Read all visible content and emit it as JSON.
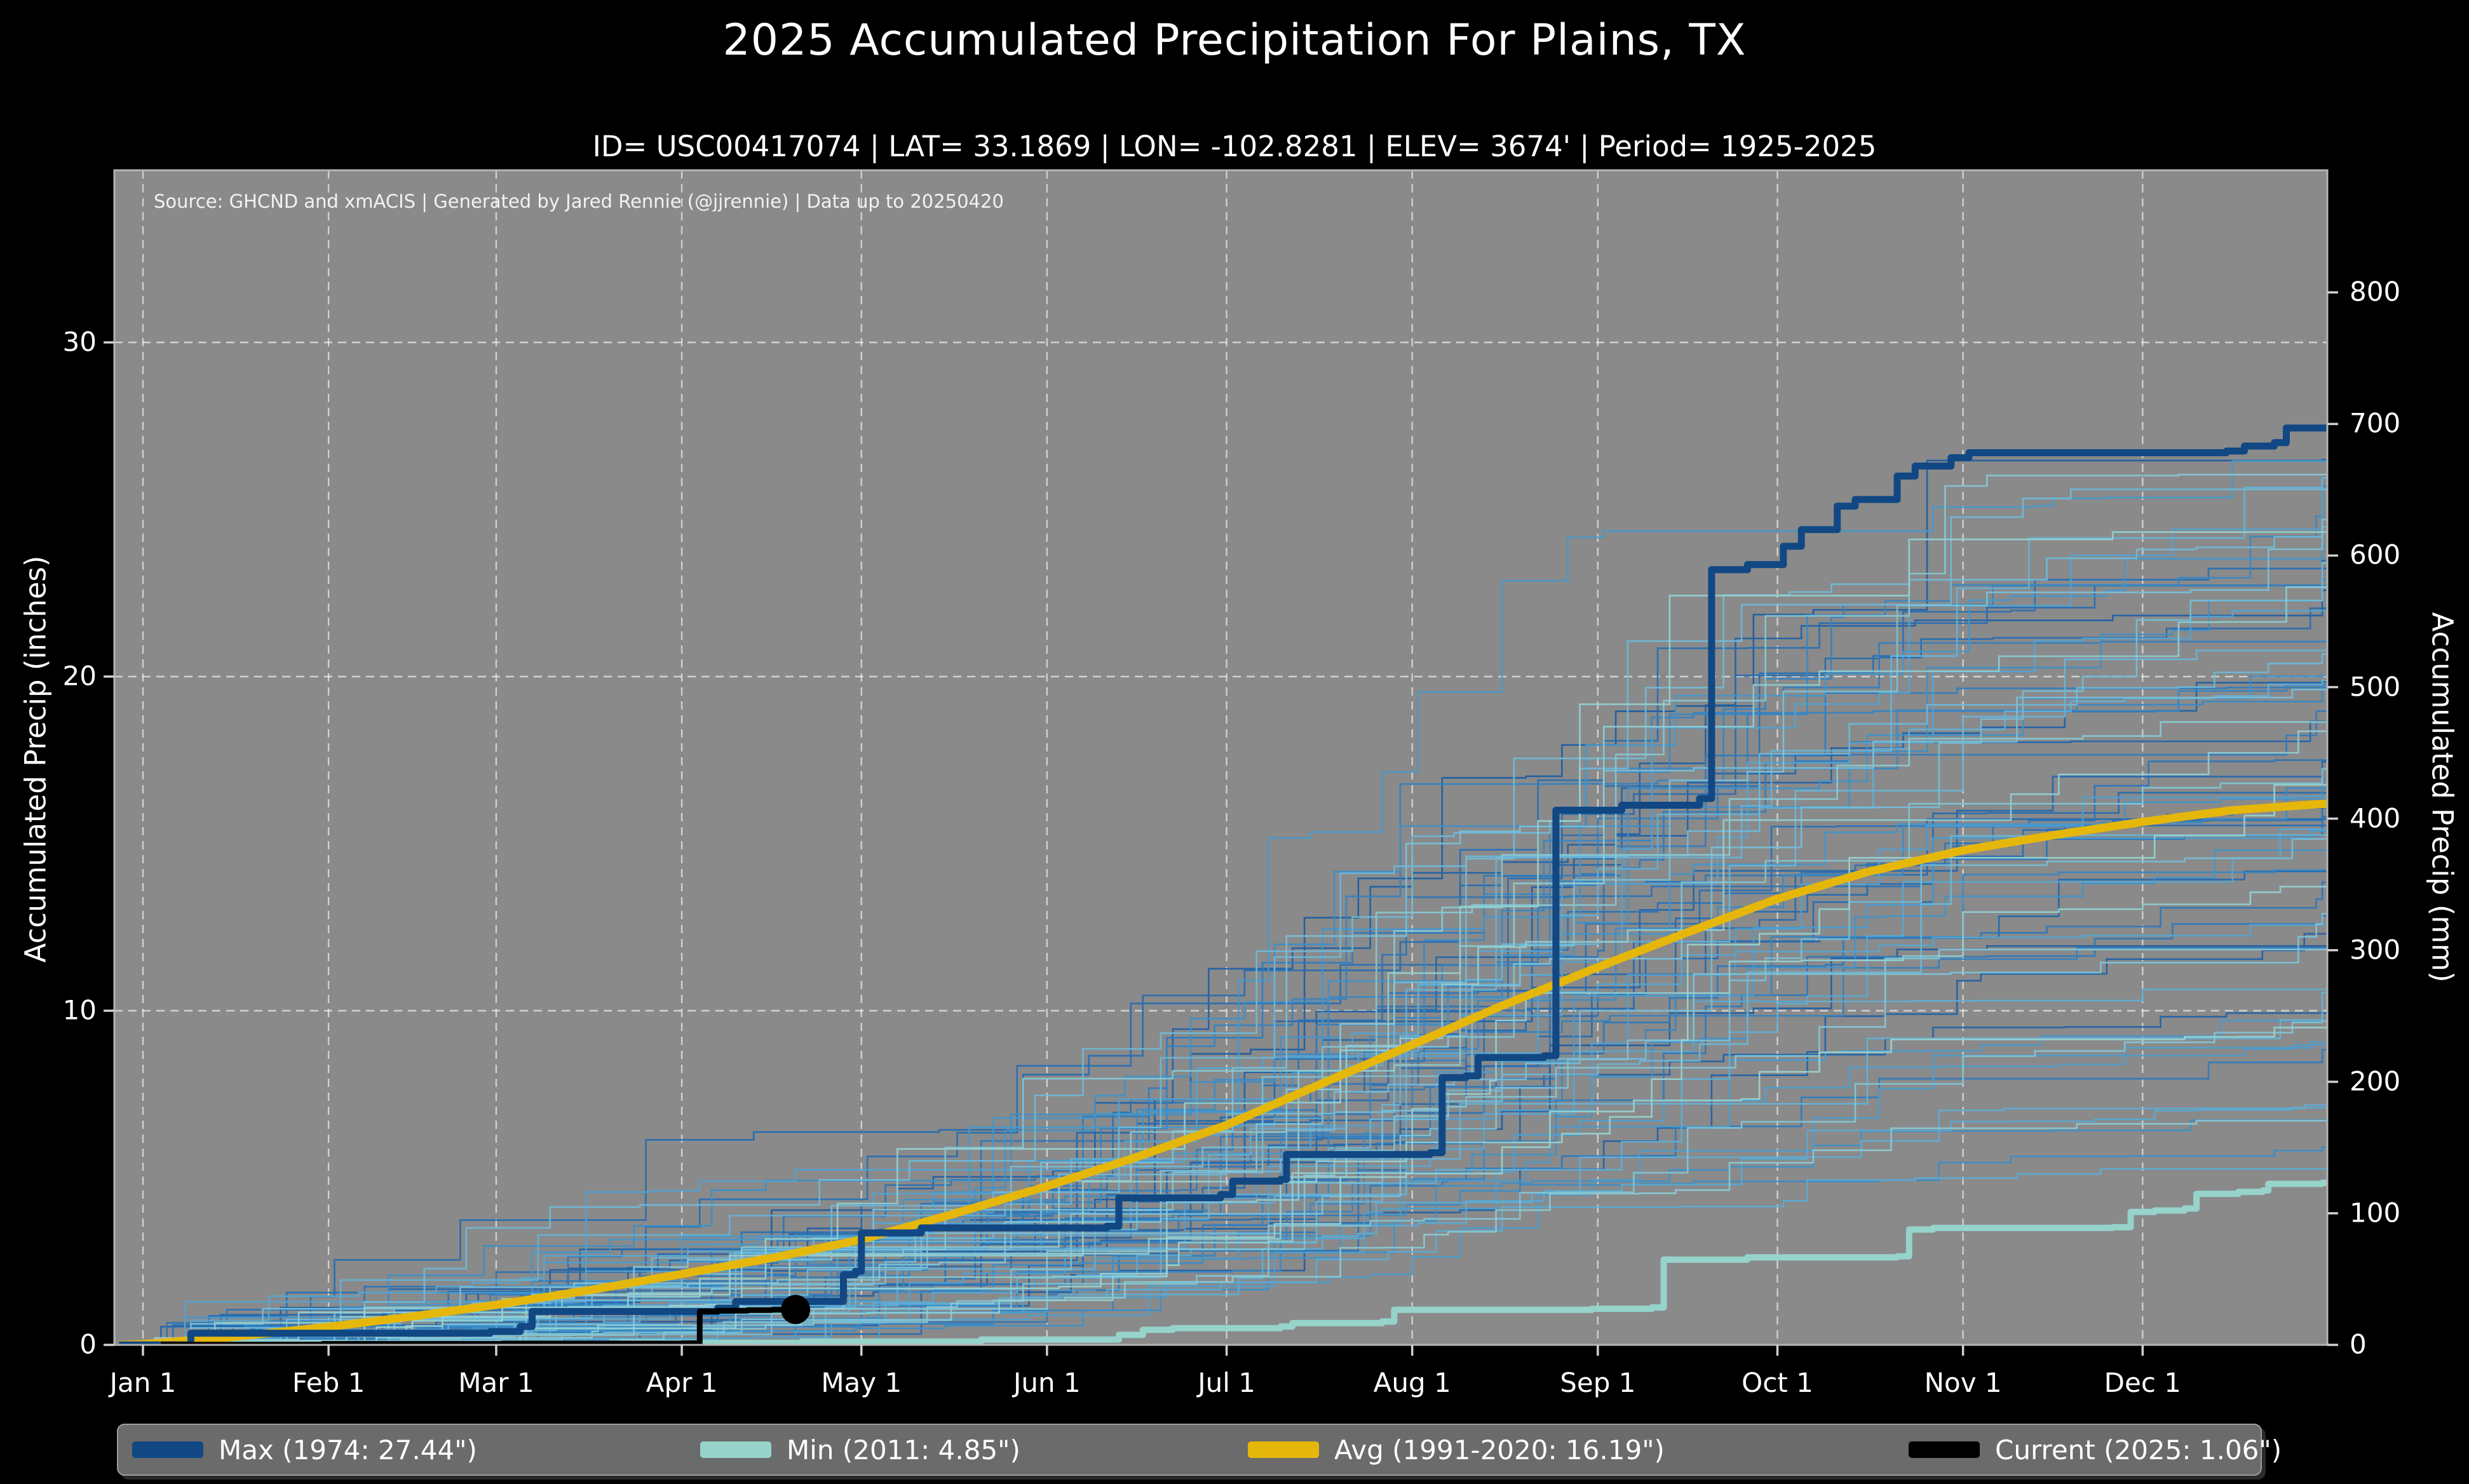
{
  "page": {
    "title": "2025 Accumulated Precipitation For Plains, TX",
    "subtitle": "ID= USC00417074 | LAT= 33.1869 | LON= -102.8281 | ELEV= 3674' | Period= 1925-2025",
    "source_note": "Source: GHCND and xmACIS | Generated by Jared Rennie (@jjrennie) | Data up to 20250420",
    "background_color": "#000000"
  },
  "chart_data": {
    "type": "line",
    "title": "2025 Accumulated Precipitation For Plains, TX",
    "subtitle": "ID= USC00417074 | LAT= 33.1869 | LON= -102.8281 | ELEV= 3674' | Period= 1925-2025",
    "annotation": "Source: GHCND and xmACIS | Generated by Jared Rennie (@jjrennie) | Data up to 20250420",
    "plot_background": "#8a8a8a",
    "grid": {
      "style": "dashed",
      "color": "rgba(255,255,255,0.6)",
      "horizontal_inches": [
        10,
        20,
        30
      ],
      "vertical_at_month_ticks": true
    },
    "x_axis": {
      "tick_labels": [
        "Jan 1",
        "Feb 1",
        "Mar 1",
        "Apr 1",
        "May 1",
        "Jun 1",
        "Jul 1",
        "Aug 1",
        "Sep 1",
        "Oct 1",
        "Nov 1",
        "Dec 1"
      ],
      "tick_days": [
        0,
        31,
        59,
        90,
        120,
        151,
        181,
        212,
        243,
        273,
        304,
        334
      ],
      "range_days": [
        0,
        364
      ]
    },
    "y_axis_left": {
      "label": "Accumulated Precip (inches)",
      "ticks": [
        0,
        10,
        20,
        30
      ],
      "range_inches": [
        0,
        35.2
      ]
    },
    "y_axis_right": {
      "label": "Accumulated Precip (mm)",
      "ticks": [
        0,
        100,
        200,
        300,
        400,
        500,
        600,
        700,
        800
      ]
    },
    "series": [
      {
        "id": "min",
        "legend_label": "Min (2011:  4.85\")",
        "year": "2011",
        "total_inches": 4.85,
        "color": "#96d3cb",
        "width": 10,
        "style": "step",
        "points_day_inches": [
          [
            -4,
            0
          ],
          [
            30,
            0.03
          ],
          [
            80,
            0.06
          ],
          [
            110,
            0.1
          ],
          [
            140,
            0.16
          ],
          [
            163,
            0.3
          ],
          [
            167,
            0.45
          ],
          [
            172,
            0.5
          ],
          [
            190,
            0.55
          ],
          [
            192,
            0.65
          ],
          [
            207,
            0.7
          ],
          [
            209,
            1.05
          ],
          [
            242,
            1.08
          ],
          [
            252,
            1.12
          ],
          [
            254,
            2.55
          ],
          [
            268,
            2.62
          ],
          [
            293,
            2.65
          ],
          [
            295,
            3.45
          ],
          [
            299,
            3.5
          ],
          [
            329,
            3.52
          ],
          [
            332,
            3.98
          ],
          [
            336,
            4.02
          ],
          [
            341,
            4.08
          ],
          [
            343,
            4.52
          ],
          [
            350,
            4.58
          ],
          [
            354,
            4.62
          ],
          [
            355,
            4.82
          ],
          [
            364,
            4.85
          ]
        ]
      },
      {
        "id": "avg",
        "legend_label": "Avg (1991-2020:  16.19\")",
        "period": "1991-2020",
        "total_inches": 16.19,
        "color": "#e6b70b",
        "width": 13,
        "style": "smooth",
        "points_day_inches": [
          [
            -4,
            0
          ],
          [
            0,
            0.02
          ],
          [
            15,
            0.24
          ],
          [
            31,
            0.54
          ],
          [
            45,
            0.85
          ],
          [
            59,
            1.2
          ],
          [
            75,
            1.65
          ],
          [
            90,
            2.12
          ],
          [
            105,
            2.6
          ],
          [
            120,
            3.15
          ],
          [
            135,
            3.9
          ],
          [
            151,
            4.75
          ],
          [
            166,
            5.62
          ],
          [
            181,
            6.58
          ],
          [
            196,
            7.75
          ],
          [
            212,
            8.98
          ],
          [
            227,
            10.15
          ],
          [
            243,
            11.3
          ],
          [
            258,
            12.35
          ],
          [
            273,
            13.35
          ],
          [
            288,
            14.15
          ],
          [
            304,
            14.8
          ],
          [
            319,
            15.25
          ],
          [
            334,
            15.65
          ],
          [
            349,
            16.0
          ],
          [
            364,
            16.19
          ]
        ]
      },
      {
        "id": "max",
        "legend_label": "Max (1974:  27.44\")",
        "year": "1974",
        "total_inches": 27.44,
        "color": "#114884",
        "width": 11,
        "style": "step",
        "points_day_inches": [
          [
            -4,
            0
          ],
          [
            8,
            0.35
          ],
          [
            58,
            0.4
          ],
          [
            63,
            0.55
          ],
          [
            65,
            1.0
          ],
          [
            96,
            1.1
          ],
          [
            99,
            1.3
          ],
          [
            116,
            1.3
          ],
          [
            117,
            2.1
          ],
          [
            119,
            2.2
          ],
          [
            120,
            3.35
          ],
          [
            130,
            3.5
          ],
          [
            161,
            3.55
          ],
          [
            163,
            4.4
          ],
          [
            180,
            4.5
          ],
          [
            182,
            4.9
          ],
          [
            190,
            4.95
          ],
          [
            191,
            5.7
          ],
          [
            215,
            5.75
          ],
          [
            217,
            8.0
          ],
          [
            221,
            8.05
          ],
          [
            223,
            8.6
          ],
          [
            234,
            8.65
          ],
          [
            236,
            16.0
          ],
          [
            247,
            16.15
          ],
          [
            260,
            16.35
          ],
          [
            262,
            23.2
          ],
          [
            268,
            23.35
          ],
          [
            274,
            23.9
          ],
          [
            277,
            24.4
          ],
          [
            283,
            25.1
          ],
          [
            286,
            25.3
          ],
          [
            293,
            26.0
          ],
          [
            296,
            26.3
          ],
          [
            302,
            26.55
          ],
          [
            305,
            26.7
          ],
          [
            348,
            26.75
          ],
          [
            351,
            26.9
          ],
          [
            356,
            27.0
          ],
          [
            358,
            27.44
          ],
          [
            364,
            27.44
          ]
        ]
      },
      {
        "id": "current",
        "legend_label": "Current (2025:  1.06\")",
        "year": "2025",
        "total_inches": 1.06,
        "color": "#000000",
        "width": 9,
        "style": "step",
        "points_day_inches": [
          [
            3,
            0.01
          ],
          [
            30,
            0.03
          ],
          [
            60,
            0.04
          ],
          [
            90,
            0.05
          ],
          [
            93,
            1.0
          ],
          [
            96,
            1.02
          ],
          [
            101,
            1.04
          ],
          [
            105,
            1.05
          ],
          [
            109,
            1.06
          ]
        ],
        "endpoint_marker": {
          "day": 109,
          "inches": 1.06,
          "radius": 23,
          "color": "#000000"
        }
      }
    ],
    "background_series": {
      "description": "Thin step lines for each year 1925-2024 (not individually labeled)",
      "count": 78,
      "seed": 20250420,
      "width": 2.6,
      "color_ramp": [
        "#1b5ca2",
        "#2a76bb",
        "#4397cd",
        "#6cb8da",
        "#99d4d2"
      ],
      "final_total_range_inches": [
        5.0,
        26.5
      ]
    },
    "axis_style": {
      "spine_color": "#b5b5b5",
      "tick_mark_color": "#d0d0d0",
      "tick_label_color": "#ffffff"
    }
  },
  "legend": {
    "items": [
      {
        "id": "max",
        "label": "Max (1974:  27.44\")",
        "swatch_color": "#114884"
      },
      {
        "id": "min",
        "label": "Min (2011:  4.85\")",
        "swatch_color": "#96d3cb"
      },
      {
        "id": "avg",
        "label": "Avg (1991-2020:  16.19\")",
        "swatch_color": "#e6b70b"
      },
      {
        "id": "current",
        "label": "Current (2025:  1.06\")",
        "swatch_color": "#000000"
      }
    ]
  }
}
